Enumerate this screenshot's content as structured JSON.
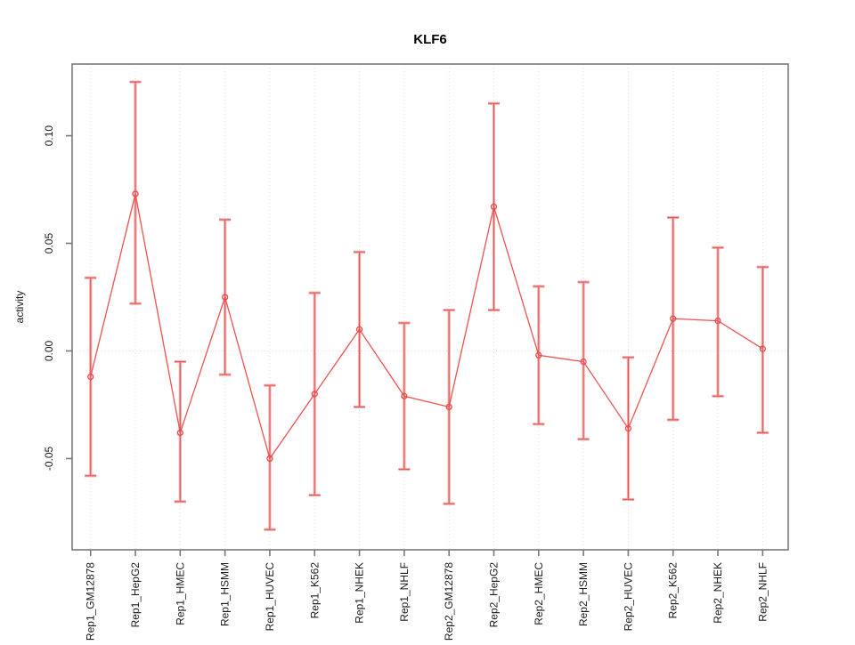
{
  "figure": {
    "title": "KLF6",
    "y_axis_label": "activity"
  },
  "chart_data": {
    "type": "line",
    "title": "KLF6",
    "xlabel": "",
    "ylabel": "activity",
    "legend": "none",
    "grid": "vertical dotted gridline at each category; horizontal dotted line at y=0 only",
    "marker": "open-circle",
    "error_bars": "symmetric whiskers with end caps",
    "ylim": [
      -0.0924,
      0.1333
    ],
    "yticks": [
      {
        "value": 0.1,
        "label": "0.10"
      },
      {
        "value": 0.05,
        "label": "0.05"
      },
      {
        "value": 0.0,
        "label": "0.00"
      },
      {
        "value": -0.05,
        "label": "-0.05"
      }
    ],
    "categories": [
      "Rep1_GM12878",
      "Rep1_HepG2",
      "Rep1_HMEC",
      "Rep1_HSMM",
      "Rep1_HUVEC",
      "Rep1_K562",
      "Rep1_NHEK",
      "Rep1_NHLF",
      "Rep2_GM12878",
      "Rep2_HepG2",
      "Rep2_HMEC",
      "Rep2_HSMM",
      "Rep2_HUVEC",
      "Rep2_K562",
      "Rep2_NHEK",
      "Rep2_NHLF"
    ],
    "series": [
      {
        "name": "activity",
        "values": [
          -0.012,
          0.073,
          -0.038,
          0.025,
          -0.05,
          -0.02,
          0.01,
          -0.021,
          -0.026,
          0.067,
          -0.002,
          -0.005,
          -0.036,
          0.015,
          0.014,
          0.001
        ],
        "upper": [
          0.034,
          0.125,
          -0.005,
          0.061,
          -0.016,
          0.027,
          0.046,
          0.013,
          0.019,
          0.115,
          0.03,
          0.032,
          -0.003,
          0.062,
          0.048,
          0.039
        ],
        "lower": [
          -0.058,
          0.022,
          -0.07,
          -0.011,
          -0.083,
          -0.067,
          -0.026,
          -0.055,
          -0.071,
          0.019,
          -0.034,
          -0.041,
          -0.069,
          -0.032,
          -0.021,
          -0.038
        ]
      }
    ],
    "colors": {
      "line": "#ee5151",
      "point": "#e94c4c",
      "error_bar_light": "#f6aeae",
      "error_bar_dark": "#dd5858",
      "grid": "#dcdcdc",
      "box": "#787878",
      "text": "#1a1a1a"
    }
  }
}
